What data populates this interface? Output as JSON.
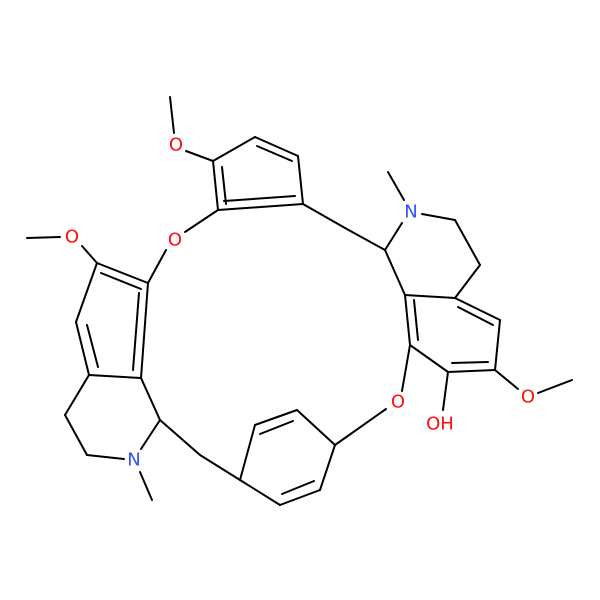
{
  "atoms": [
    {
      "label": "O"
    },
    {
      "label": "O"
    },
    {
      "label": "O"
    },
    {
      "label": "N"
    },
    {
      "label": "N"
    },
    {
      "label": "O"
    },
    {
      "label": "OH"
    },
    {
      "label": "O"
    }
  ]
}
